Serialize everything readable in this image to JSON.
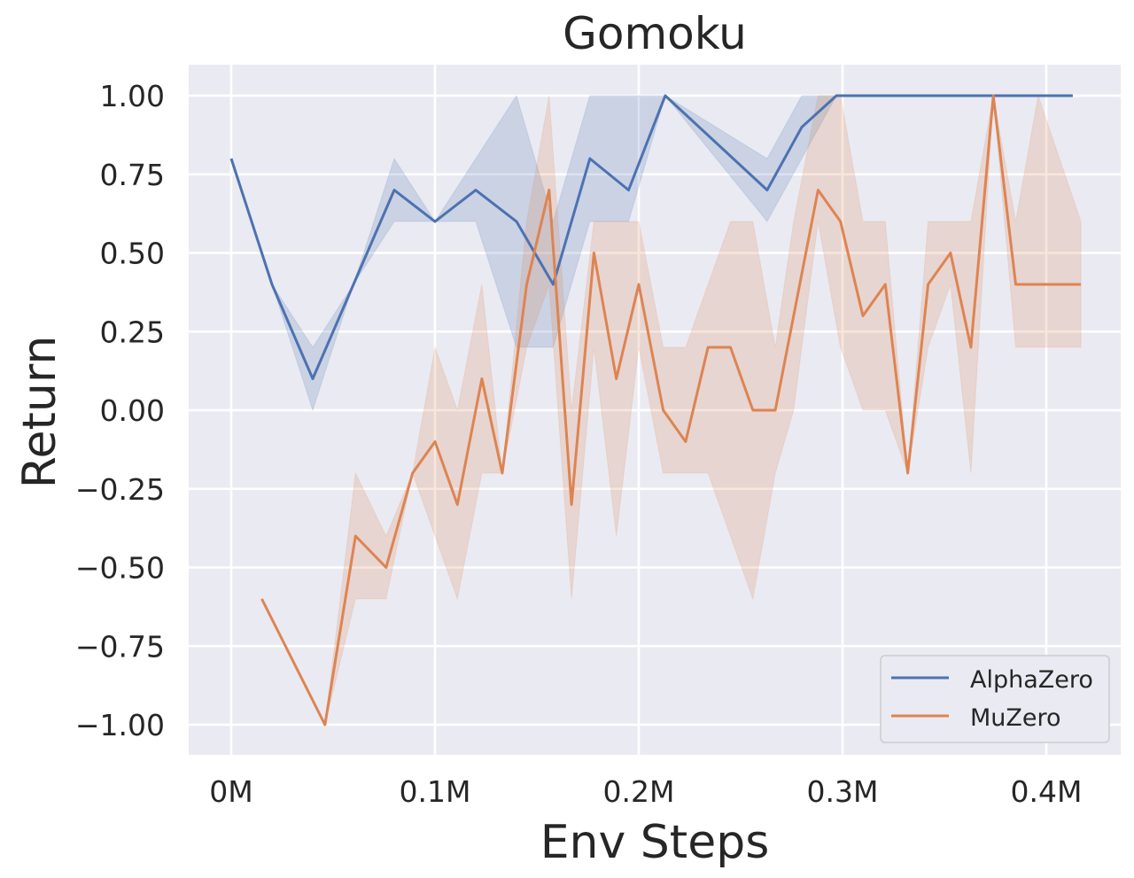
{
  "chart_data": {
    "type": "line",
    "title": "Gomoku",
    "xlabel": "Env Steps",
    "ylabel": "Return",
    "xlim": [
      -0.021,
      0.437
    ],
    "ylim": [
      -1.1,
      1.1
    ],
    "x_ticks": [
      0,
      0.1,
      0.2,
      0.3,
      0.4
    ],
    "x_tick_labels": [
      "0M",
      "0.1M",
      "0.2M",
      "0.3M",
      "0.4M"
    ],
    "y_ticks": [
      1.0,
      0.75,
      0.5,
      0.25,
      0.0,
      -0.25,
      -0.5,
      -0.75,
      -1.0
    ],
    "y_tick_labels": [
      "1.00",
      "0.75",
      "0.50",
      "0.25",
      "0.00",
      "−0.25",
      "−0.50",
      "−0.75",
      "−1.00"
    ],
    "grid": true,
    "background": "#eaeaf2",
    "legend_position": "lower right",
    "series": [
      {
        "name": "AlphaZero",
        "color": "#4c72b0",
        "x": [
          0.0,
          0.02,
          0.04,
          0.06,
          0.08,
          0.1,
          0.12,
          0.14,
          0.158,
          0.176,
          0.195,
          0.213,
          0.263,
          0.28,
          0.297,
          0.32,
          0.35,
          0.38,
          0.413
        ],
        "values": [
          0.8,
          0.4,
          0.1,
          0.4,
          0.7,
          0.6,
          0.7,
          0.6,
          0.4,
          0.8,
          0.7,
          1.0,
          0.7,
          0.9,
          1.0,
          1.0,
          1.0,
          1.0,
          1.0
        ],
        "lower": [
          0.8,
          0.4,
          0.0,
          0.4,
          0.6,
          0.6,
          0.6,
          0.2,
          0.2,
          0.6,
          0.6,
          1.0,
          0.6,
          0.8,
          1.0,
          1.0,
          1.0,
          1.0,
          1.0
        ],
        "upper": [
          0.8,
          0.4,
          0.2,
          0.4,
          0.8,
          0.6,
          0.8,
          1.0,
          0.6,
          1.0,
          1.0,
          1.0,
          0.8,
          1.0,
          1.0,
          1.0,
          1.0,
          1.0,
          1.0
        ]
      },
      {
        "name": "MuZero",
        "color": "#dd8452",
        "x": [
          0.015,
          0.046,
          0.061,
          0.076,
          0.089,
          0.1,
          0.111,
          0.123,
          0.133,
          0.145,
          0.156,
          0.167,
          0.178,
          0.189,
          0.2,
          0.212,
          0.223,
          0.234,
          0.245,
          0.256,
          0.267,
          0.276,
          0.288,
          0.299,
          0.31,
          0.321,
          0.332,
          0.342,
          0.353,
          0.363,
          0.374,
          0.385,
          0.396,
          0.417
        ],
        "values": [
          -0.6,
          -1.0,
          -0.4,
          -0.5,
          -0.2,
          -0.1,
          -0.3,
          0.1,
          -0.2,
          0.4,
          0.7,
          -0.3,
          0.5,
          0.1,
          0.4,
          0.0,
          -0.1,
          0.2,
          0.2,
          0.0,
          0.0,
          0.3,
          0.7,
          0.6,
          0.3,
          0.4,
          -0.2,
          0.4,
          0.5,
          0.2,
          1.0,
          0.4,
          0.4,
          0.4
        ],
        "lower": [
          -0.6,
          -1.0,
          -0.6,
          -0.6,
          -0.2,
          -0.4,
          -0.6,
          -0.2,
          -0.2,
          0.2,
          0.4,
          -0.6,
          0.2,
          -0.4,
          0.2,
          -0.2,
          -0.2,
          -0.2,
          -0.4,
          -0.6,
          -0.2,
          0.0,
          0.6,
          0.2,
          0.0,
          0.0,
          -0.2,
          0.2,
          0.4,
          -0.2,
          1.0,
          0.2,
          0.2,
          0.2
        ],
        "upper": [
          -0.6,
          -1.0,
          -0.2,
          -0.4,
          -0.2,
          0.2,
          0.0,
          0.4,
          -0.2,
          0.6,
          1.0,
          0.0,
          0.6,
          0.6,
          0.6,
          0.2,
          0.2,
          0.4,
          0.6,
          0.6,
          0.2,
          0.6,
          1.0,
          1.0,
          0.6,
          0.6,
          -0.2,
          0.6,
          0.6,
          0.6,
          1.0,
          0.6,
          1.0,
          0.6
        ]
      }
    ]
  },
  "legend": {
    "items": [
      {
        "label": "AlphaZero",
        "color": "#4c72b0"
      },
      {
        "label": "MuZero",
        "color": "#dd8452"
      }
    ]
  }
}
